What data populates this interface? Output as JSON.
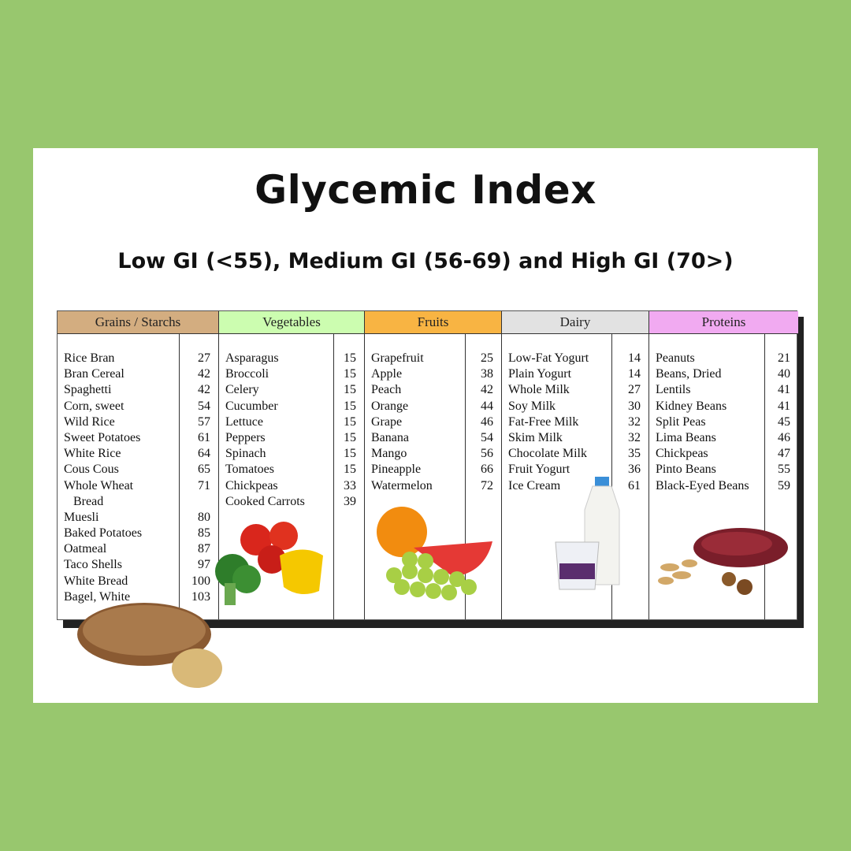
{
  "title": "Glycemic Index",
  "subtitle": "Low GI (<55), Medium GI (56-69) and High GI (70>)",
  "columns": [
    {
      "header": "Grains / Starchs",
      "color": "#d3ad80",
      "items": [
        {
          "name": "Rice Bran",
          "gi": "27"
        },
        {
          "name": "Bran Cereal",
          "gi": "42"
        },
        {
          "name": "Spaghetti",
          "gi": "42"
        },
        {
          "name": "Corn, sweet",
          "gi": "54"
        },
        {
          "name": "Wild Rice",
          "gi": "57"
        },
        {
          "name": "Sweet Potatoes",
          "gi": "61"
        },
        {
          "name": "White Rice",
          "gi": "64"
        },
        {
          "name": "Cous Cous",
          "gi": "65"
        },
        {
          "name": "Whole Wheat",
          "gi": "71"
        },
        {
          "name": "  Bread",
          "gi": ""
        },
        {
          "name": "Muesli",
          "gi": "80"
        },
        {
          "name": "Baked Potatoes",
          "gi": "85"
        },
        {
          "name": "Oatmeal",
          "gi": "87"
        },
        {
          "name": "Taco Shells",
          "gi": "97"
        },
        {
          "name": "White Bread",
          "gi": "100"
        },
        {
          "name": "Bagel, White",
          "gi": "103"
        }
      ]
    },
    {
      "header": "Vegetables",
      "color": "#ccfdb0",
      "items": [
        {
          "name": "Asparagus",
          "gi": "15"
        },
        {
          "name": "Broccoli",
          "gi": "15"
        },
        {
          "name": "Celery",
          "gi": "15"
        },
        {
          "name": "Cucumber",
          "gi": "15"
        },
        {
          "name": "Lettuce",
          "gi": "15"
        },
        {
          "name": "Peppers",
          "gi": "15"
        },
        {
          "name": "Spinach",
          "gi": "15"
        },
        {
          "name": "Tomatoes",
          "gi": "15"
        },
        {
          "name": "Chickpeas",
          "gi": "33"
        },
        {
          "name": "Cooked Carrots",
          "gi": "39"
        }
      ]
    },
    {
      "header": "Fruits",
      "color": "#f8b443",
      "items": [
        {
          "name": "Grapefruit",
          "gi": "25"
        },
        {
          "name": "Apple",
          "gi": "38"
        },
        {
          "name": "Peach",
          "gi": "42"
        },
        {
          "name": "Orange",
          "gi": "44"
        },
        {
          "name": "Grape",
          "gi": "46"
        },
        {
          "name": "Banana",
          "gi": "54"
        },
        {
          "name": "Mango",
          "gi": "56"
        },
        {
          "name": "Pineapple",
          "gi": "66"
        },
        {
          "name": "Watermelon",
          "gi": "72"
        }
      ]
    },
    {
      "header": "Dairy",
      "color": "#e2e2e2",
      "items": [
        {
          "name": "Low-Fat Yogurt",
          "gi": "14"
        },
        {
          "name": "Plain Yogurt",
          "gi": "14"
        },
        {
          "name": "Whole Milk",
          "gi": "27"
        },
        {
          "name": "Soy Milk",
          "gi": "30"
        },
        {
          "name": "Fat-Free Milk",
          "gi": "32"
        },
        {
          "name": "Skim Milk",
          "gi": "32"
        },
        {
          "name": "Chocolate Milk",
          "gi": "35"
        },
        {
          "name": "Fruit Yogurt",
          "gi": "36"
        },
        {
          "name": "Ice Cream",
          "gi": "61"
        }
      ]
    },
    {
      "header": "Proteins",
      "color": "#f1aaf1",
      "items": [
        {
          "name": "Peanuts",
          "gi": "21"
        },
        {
          "name": "Beans, Dried",
          "gi": "40"
        },
        {
          "name": "Lentils",
          "gi": "41"
        },
        {
          "name": "Kidney Beans",
          "gi": "41"
        },
        {
          "name": "Split Peas",
          "gi": "45"
        },
        {
          "name": "Lima Beans",
          "gi": "46"
        },
        {
          "name": "Chickpeas",
          "gi": "47"
        },
        {
          "name": "Pinto Beans",
          "gi": "55"
        },
        {
          "name": "Black-Eyed Beans",
          "gi": "59"
        }
      ]
    }
  ]
}
